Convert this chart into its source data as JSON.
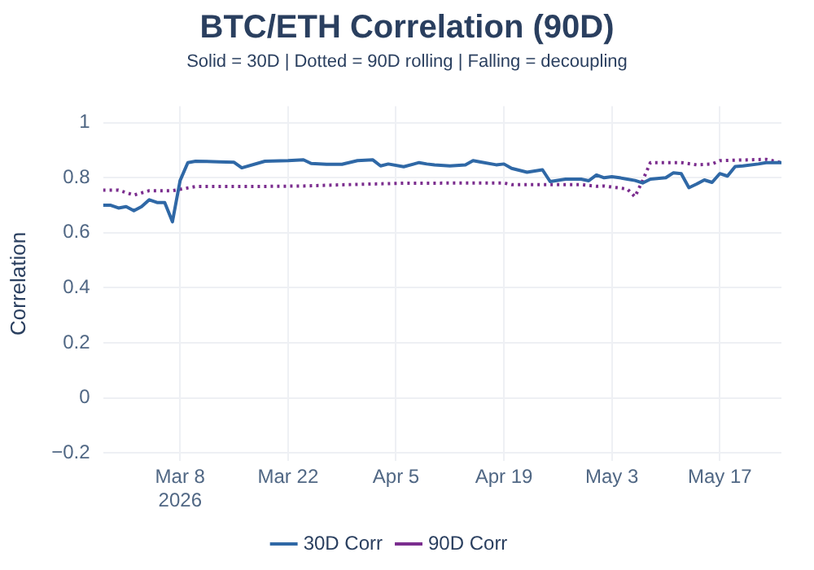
{
  "chart_data": {
    "type": "line",
    "title": "BTC/ETH Correlation (90D)",
    "subtitle": "Solid = 30D | Dotted = 90D rolling | Falling = decoupling",
    "ylabel": "Correlation",
    "xlim": [
      "2026-02-26",
      "2026-05-25"
    ],
    "xticks": [
      {
        "value": "2026-03-08",
        "label": "Mar 8\n2026"
      },
      {
        "value": "2026-03-22",
        "label": "Mar 22"
      },
      {
        "value": "2026-04-05",
        "label": "Apr 5"
      },
      {
        "value": "2026-04-19",
        "label": "Apr 19"
      },
      {
        "value": "2026-05-03",
        "label": "May 3"
      },
      {
        "value": "2026-05-17",
        "label": "May 17"
      }
    ],
    "ylim": [
      -0.23,
      1.06
    ],
    "yticks": [
      {
        "value": -0.2,
        "label": "−0.2"
      },
      0,
      0.2,
      0.4,
      0.6,
      0.8,
      1
    ],
    "grid": true,
    "legend": "bottom",
    "marker": "none",
    "series": [
      {
        "name": "30D Corr",
        "color": "#2f68a6",
        "line_style": "solid",
        "x": [
          "2026-02-26",
          "2026-02-27",
          "2026-02-28",
          "2026-03-01",
          "2026-03-02",
          "2026-03-03",
          "2026-03-04",
          "2026-03-05",
          "2026-03-06",
          "2026-03-07",
          "2026-03-08",
          "2026-03-09",
          "2026-03-10",
          "2026-03-13",
          "2026-03-15",
          "2026-03-16",
          "2026-03-19",
          "2026-03-22",
          "2026-03-24",
          "2026-03-25",
          "2026-03-27",
          "2026-03-29",
          "2026-03-31",
          "2026-04-02",
          "2026-04-03",
          "2026-04-04",
          "2026-04-06",
          "2026-04-08",
          "2026-04-09",
          "2026-04-10",
          "2026-04-12",
          "2026-04-14",
          "2026-04-15",
          "2026-04-16",
          "2026-04-18",
          "2026-04-19",
          "2026-04-20",
          "2026-04-22",
          "2026-04-24",
          "2026-04-25",
          "2026-04-27",
          "2026-04-29",
          "2026-04-30",
          "2026-05-01",
          "2026-05-02",
          "2026-05-03",
          "2026-05-04",
          "2026-05-05",
          "2026-05-06",
          "2026-05-07",
          "2026-05-08",
          "2026-05-10",
          "2026-05-11",
          "2026-05-12",
          "2026-05-13",
          "2026-05-14",
          "2026-05-15",
          "2026-05-16",
          "2026-05-17",
          "2026-05-18",
          "2026-05-19",
          "2026-05-20",
          "2026-05-22",
          "2026-05-23",
          "2026-05-25"
        ],
        "values": [
          0.7,
          0.7,
          0.69,
          0.695,
          0.68,
          0.695,
          0.72,
          0.71,
          0.71,
          0.64,
          0.79,
          0.855,
          0.86,
          0.858,
          0.856,
          0.836,
          0.86,
          0.862,
          0.865,
          0.852,
          0.849,
          0.849,
          0.862,
          0.865,
          0.843,
          0.85,
          0.84,
          0.855,
          0.85,
          0.847,
          0.843,
          0.847,
          0.862,
          0.857,
          0.847,
          0.85,
          0.834,
          0.82,
          0.829,
          0.786,
          0.795,
          0.795,
          0.789,
          0.81,
          0.8,
          0.804,
          0.8,
          0.795,
          0.79,
          0.781,
          0.795,
          0.8,
          0.818,
          0.815,
          0.764,
          0.777,
          0.792,
          0.783,
          0.815,
          0.806,
          0.841,
          0.843,
          0.85,
          0.855,
          0.855
        ]
      },
      {
        "name": "90D Corr",
        "color": "#7b2d8e",
        "line_style": "dotted",
        "x": [
          "2026-02-26",
          "2026-02-28",
          "2026-03-02",
          "2026-03-04",
          "2026-03-07",
          "2026-03-10",
          "2026-03-17",
          "2026-03-24",
          "2026-03-31",
          "2026-04-06",
          "2026-04-16",
          "2026-04-19",
          "2026-04-20",
          "2026-04-29",
          "2026-05-01",
          "2026-05-02",
          "2026-05-05",
          "2026-05-06",
          "2026-05-07",
          "2026-05-08",
          "2026-05-12",
          "2026-05-14",
          "2026-05-16",
          "2026-05-17",
          "2026-05-23",
          "2026-05-25"
        ],
        "values": [
          0.755,
          0.755,
          0.737,
          0.753,
          0.753,
          0.768,
          0.768,
          0.77,
          0.776,
          0.78,
          0.781,
          0.781,
          0.775,
          0.775,
          0.769,
          0.77,
          0.759,
          0.731,
          0.79,
          0.855,
          0.855,
          0.847,
          0.85,
          0.862,
          0.867,
          0.855
        ]
      }
    ]
  }
}
